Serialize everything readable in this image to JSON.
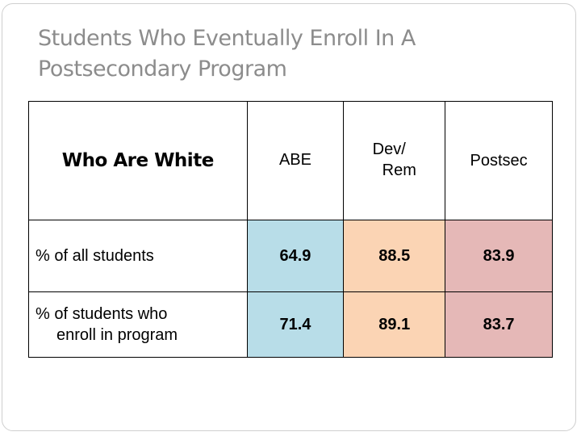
{
  "slide": {
    "title": "Students Who Eventually Enroll In A Postsecondary Program"
  },
  "table": {
    "corner_header": "Who Are White",
    "columns": [
      {
        "label": "ABE",
        "color": "#b8dde8"
      },
      {
        "label_line1": "Dev/",
        "label_line2": "Rem",
        "color": "#fbd4b4"
      },
      {
        "label": "Postsec",
        "color": "#e5b8b7"
      }
    ],
    "rows": [
      {
        "label": "% of all students",
        "values": [
          "64.9",
          "88.5",
          "83.9"
        ]
      },
      {
        "label_line1": "% of students who",
        "label_line2": "enroll in program",
        "values": [
          "71.4",
          "89.1",
          "83.7"
        ]
      }
    ]
  }
}
